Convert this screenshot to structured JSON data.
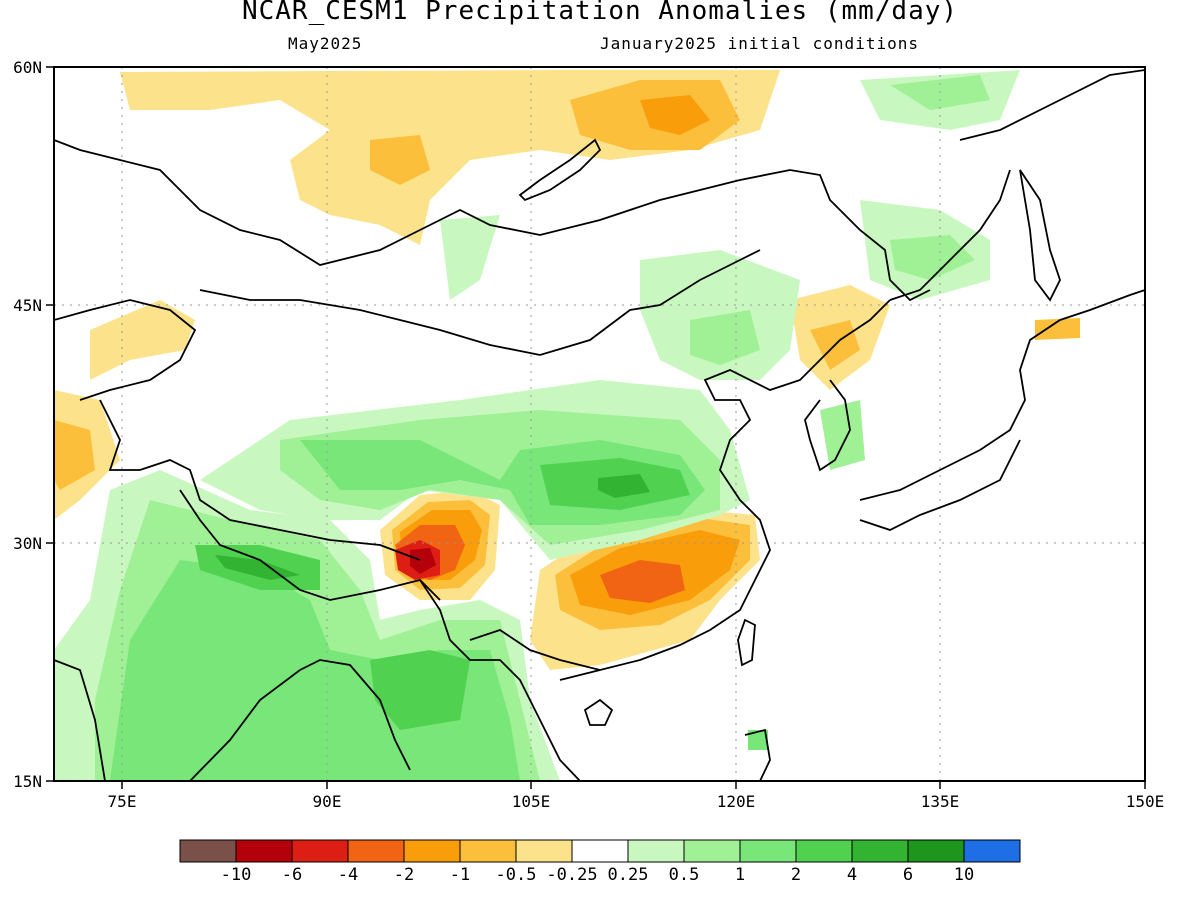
{
  "title": "NCAR_CESM1 Precipitation Anomalies (mm/day)",
  "subtitle_left": "May2025",
  "subtitle_right": "January2025 initial conditions",
  "lat_labels": [
    "60N",
    "45N",
    "30N",
    "15N"
  ],
  "lon_labels": [
    "75E",
    "90E",
    "105E",
    "120E",
    "135E",
    "150E"
  ],
  "colorbar": {
    "colors": [
      "#7a5048",
      "#b4000a",
      "#dc1e14",
      "#f06414",
      "#fa9d0a",
      "#fbbf3c",
      "#fde28c",
      "#ffffff",
      "#c8f8c0",
      "#a0f096",
      "#78e678",
      "#50d250",
      "#32b432",
      "#1e961e",
      "#1e6ee6"
    ],
    "labels": [
      "-10",
      "-6",
      "-4",
      "-2",
      "-1",
      "-0.5",
      "-0.25",
      "0.25",
      "0.5",
      "1",
      "2",
      "4",
      "6",
      "10"
    ]
  },
  "map": {
    "lon_range": [
      70,
      150
    ],
    "lat_range": [
      15,
      60
    ],
    "graticule": "dotted"
  }
}
